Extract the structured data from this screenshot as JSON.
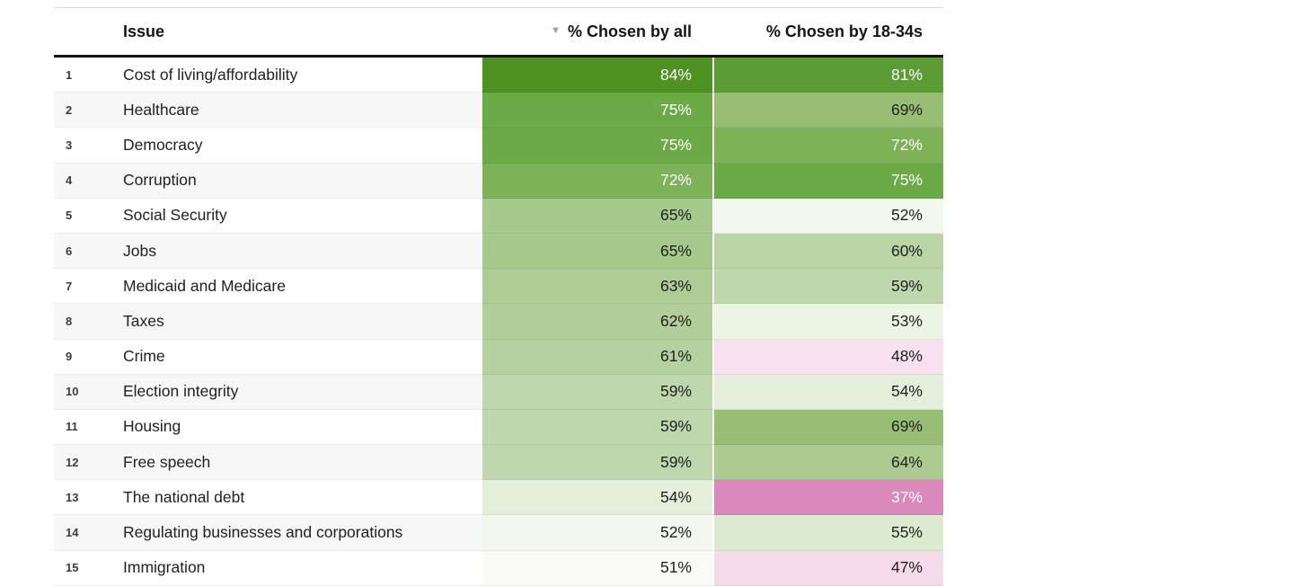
{
  "header": {
    "issue_label": "Issue",
    "all_label": "% Chosen by all",
    "young_label": "% Chosen by 18-34s",
    "sort_icon": "▼",
    "sorted_by": "% Chosen by all (descending)"
  },
  "colors": {
    "header_border": "#141414",
    "alt_row_bg": "#f7f7f7",
    "strong_green": "#4e9222",
    "strong_pink": "#d989bc",
    "sort_icon_gray": "#9e9e9e"
  },
  "chart_data": {
    "type": "table",
    "title": "",
    "columns": [
      "Issue",
      "% Chosen by all",
      "% Chosen by 18-34s"
    ],
    "value_format": "percent",
    "color_encoding": "diverging pink-white-green heatmap centered near 50%",
    "rows": [
      {
        "rank": "1",
        "issue": "Cost of living/affordability",
        "all": 84,
        "young": 81,
        "all_bg": "#4e9222",
        "all_fg": "#ffffff",
        "young_bg": "#5b9c35",
        "young_fg": "#ffffff"
      },
      {
        "rank": "2",
        "issue": "Healthcare",
        "all": 75,
        "young": 69,
        "all_bg": "#6caa48",
        "all_fg": "#ffffff",
        "young_bg": "#97be74",
        "young_fg": "#212121"
      },
      {
        "rank": "3",
        "issue": "Democracy",
        "all": 75,
        "young": 72,
        "all_bg": "#6caa48",
        "all_fg": "#ffffff",
        "young_bg": "#7eb259",
        "young_fg": "#ffffff"
      },
      {
        "rank": "4",
        "issue": "Corruption",
        "all": 72,
        "young": 75,
        "all_bg": "#7eb259",
        "all_fg": "#ffffff",
        "young_bg": "#6caa48",
        "young_fg": "#ffffff"
      },
      {
        "rank": "5",
        "issue": "Social Security",
        "all": 65,
        "young": 52,
        "all_bg": "#a6c98c",
        "all_fg": "#212121",
        "young_bg": "#f3f8ee",
        "young_fg": "#212121"
      },
      {
        "rank": "6",
        "issue": "Jobs",
        "all": 65,
        "young": 60,
        "all_bg": "#a6c98c",
        "all_fg": "#212121",
        "young_bg": "#bbd4a6",
        "young_fg": "#212121"
      },
      {
        "rank": "7",
        "issue": "Medicaid and Medicare",
        "all": 63,
        "young": 59,
        "all_bg": "#aecd96",
        "all_fg": "#212121",
        "young_bg": "#bfd7ac",
        "young_fg": "#212121"
      },
      {
        "rank": "8",
        "issue": "Taxes",
        "all": 62,
        "young": 53,
        "all_bg": "#b2cf9b",
        "all_fg": "#212121",
        "young_bg": "#ecf4e4",
        "young_fg": "#212121"
      },
      {
        "rank": "9",
        "issue": "Crime",
        "all": 61,
        "young": 48,
        "all_bg": "#b6d1a0",
        "all_fg": "#212121",
        "young_bg": "#f7e1ee",
        "young_fg": "#212121"
      },
      {
        "rank": "10",
        "issue": "Election integrity",
        "all": 59,
        "young": 54,
        "all_bg": "#bfd7ac",
        "all_fg": "#212121",
        "young_bg": "#e4efdb",
        "young_fg": "#212121"
      },
      {
        "rank": "11",
        "issue": "Housing",
        "all": 59,
        "young": 69,
        "all_bg": "#bfd7ac",
        "all_fg": "#212121",
        "young_bg": "#97be74",
        "young_fg": "#212121"
      },
      {
        "rank": "12",
        "issue": "Free speech",
        "all": 59,
        "young": 64,
        "all_bg": "#bfd7ac",
        "all_fg": "#212121",
        "young_bg": "#abcb91",
        "young_fg": "#212121"
      },
      {
        "rank": "13",
        "issue": "The national debt",
        "all": 54,
        "young": 37,
        "all_bg": "#e4efdb",
        "all_fg": "#212121",
        "young_bg": "#d989bc",
        "young_fg": "#ffffff"
      },
      {
        "rank": "14",
        "issue": "Regulating businesses and corporations",
        "all": 52,
        "young": 55,
        "all_bg": "#f3f8ee",
        "all_fg": "#212121",
        "young_bg": "#dcebcf",
        "young_fg": "#212121"
      },
      {
        "rank": "15",
        "issue": "Immigration",
        "all": 51,
        "young": 47,
        "all_bg": "#fafbf6",
        "all_fg": "#212121",
        "young_bg": "#f5dae9",
        "young_fg": "#212121"
      }
    ]
  }
}
